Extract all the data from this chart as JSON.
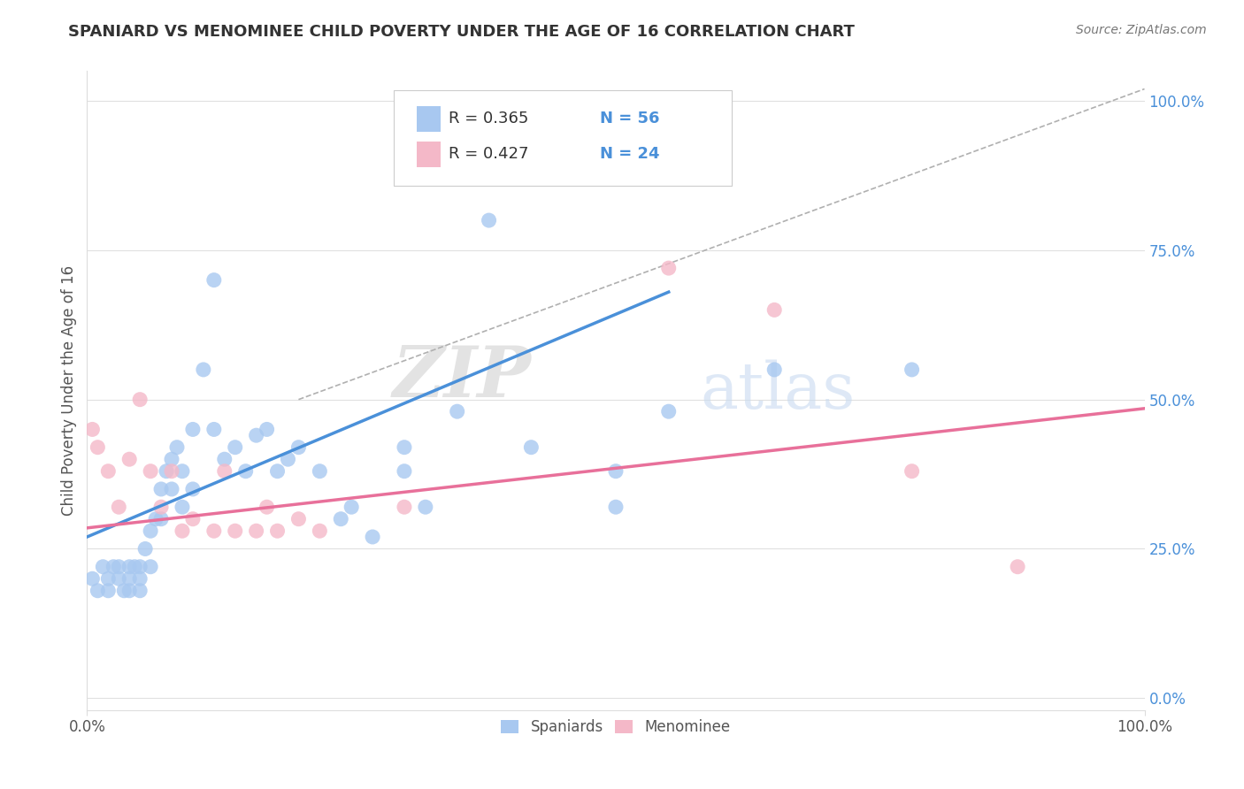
{
  "title": "SPANIARD VS MENOMINEE CHILD POVERTY UNDER THE AGE OF 16 CORRELATION CHART",
  "source": "Source: ZipAtlas.com",
  "ylabel": "Child Poverty Under the Age of 16",
  "ytick_labels": [
    "0.0%",
    "25.0%",
    "50.0%",
    "75.0%",
    "100.0%"
  ],
  "ytick_vals": [
    0.0,
    0.25,
    0.5,
    0.75,
    1.0
  ],
  "legend_label1": "Spaniards",
  "legend_label2": "Menominee",
  "R1": "R = 0.365",
  "N1": "N = 56",
  "R2": "R = 0.427",
  "N2": "N = 24",
  "watermark_zip": "ZIP",
  "watermark_atlas": "atlas",
  "color_spaniard": "#a8c8f0",
  "color_menominee": "#f4b8c8",
  "color_spaniard_line": "#4a90d9",
  "color_menominee_line": "#e8709a",
  "color_dash": "#b0b0b0",
  "color_grid": "#e0e0e0",
  "color_rtext": "#333333",
  "color_ntext": "#4a90d9",
  "spaniard_x": [
    0.005,
    0.01,
    0.015,
    0.02,
    0.02,
    0.025,
    0.03,
    0.03,
    0.035,
    0.04,
    0.04,
    0.04,
    0.045,
    0.05,
    0.05,
    0.05,
    0.055,
    0.06,
    0.06,
    0.065,
    0.07,
    0.07,
    0.075,
    0.08,
    0.08,
    0.085,
    0.09,
    0.09,
    0.1,
    0.1,
    0.11,
    0.12,
    0.12,
    0.13,
    0.14,
    0.15,
    0.16,
    0.17,
    0.18,
    0.19,
    0.2,
    0.22,
    0.24,
    0.25,
    0.27,
    0.3,
    0.3,
    0.32,
    0.35,
    0.38,
    0.42,
    0.5,
    0.5,
    0.55,
    0.65,
    0.78
  ],
  "spaniard_y": [
    0.2,
    0.18,
    0.22,
    0.2,
    0.18,
    0.22,
    0.22,
    0.2,
    0.18,
    0.22,
    0.18,
    0.2,
    0.22,
    0.22,
    0.2,
    0.18,
    0.25,
    0.28,
    0.22,
    0.3,
    0.35,
    0.3,
    0.38,
    0.4,
    0.35,
    0.42,
    0.38,
    0.32,
    0.45,
    0.35,
    0.55,
    0.7,
    0.45,
    0.4,
    0.42,
    0.38,
    0.44,
    0.45,
    0.38,
    0.4,
    0.42,
    0.38,
    0.3,
    0.32,
    0.27,
    0.42,
    0.38,
    0.32,
    0.48,
    0.8,
    0.42,
    0.38,
    0.32,
    0.48,
    0.55,
    0.55
  ],
  "menominee_x": [
    0.005,
    0.01,
    0.02,
    0.03,
    0.04,
    0.05,
    0.06,
    0.07,
    0.08,
    0.09,
    0.1,
    0.12,
    0.13,
    0.14,
    0.16,
    0.17,
    0.18,
    0.2,
    0.22,
    0.3,
    0.55,
    0.65,
    0.78,
    0.88
  ],
  "menominee_y": [
    0.45,
    0.42,
    0.38,
    0.32,
    0.4,
    0.5,
    0.38,
    0.32,
    0.38,
    0.28,
    0.3,
    0.28,
    0.38,
    0.28,
    0.28,
    0.32,
    0.28,
    0.3,
    0.28,
    0.32,
    0.72,
    0.65,
    0.38,
    0.22
  ],
  "spaniard_line_x": [
    0.0,
    0.55
  ],
  "spaniard_line_y": [
    0.27,
    0.68
  ],
  "menominee_line_x": [
    0.0,
    1.0
  ],
  "menominee_line_y": [
    0.285,
    0.485
  ],
  "dash_line_x": [
    0.2,
    1.0
  ],
  "dash_line_y": [
    0.5,
    1.02
  ],
  "xlim": [
    0.0,
    1.0
  ],
  "ylim": [
    -0.02,
    1.05
  ],
  "background_color": "#ffffff"
}
